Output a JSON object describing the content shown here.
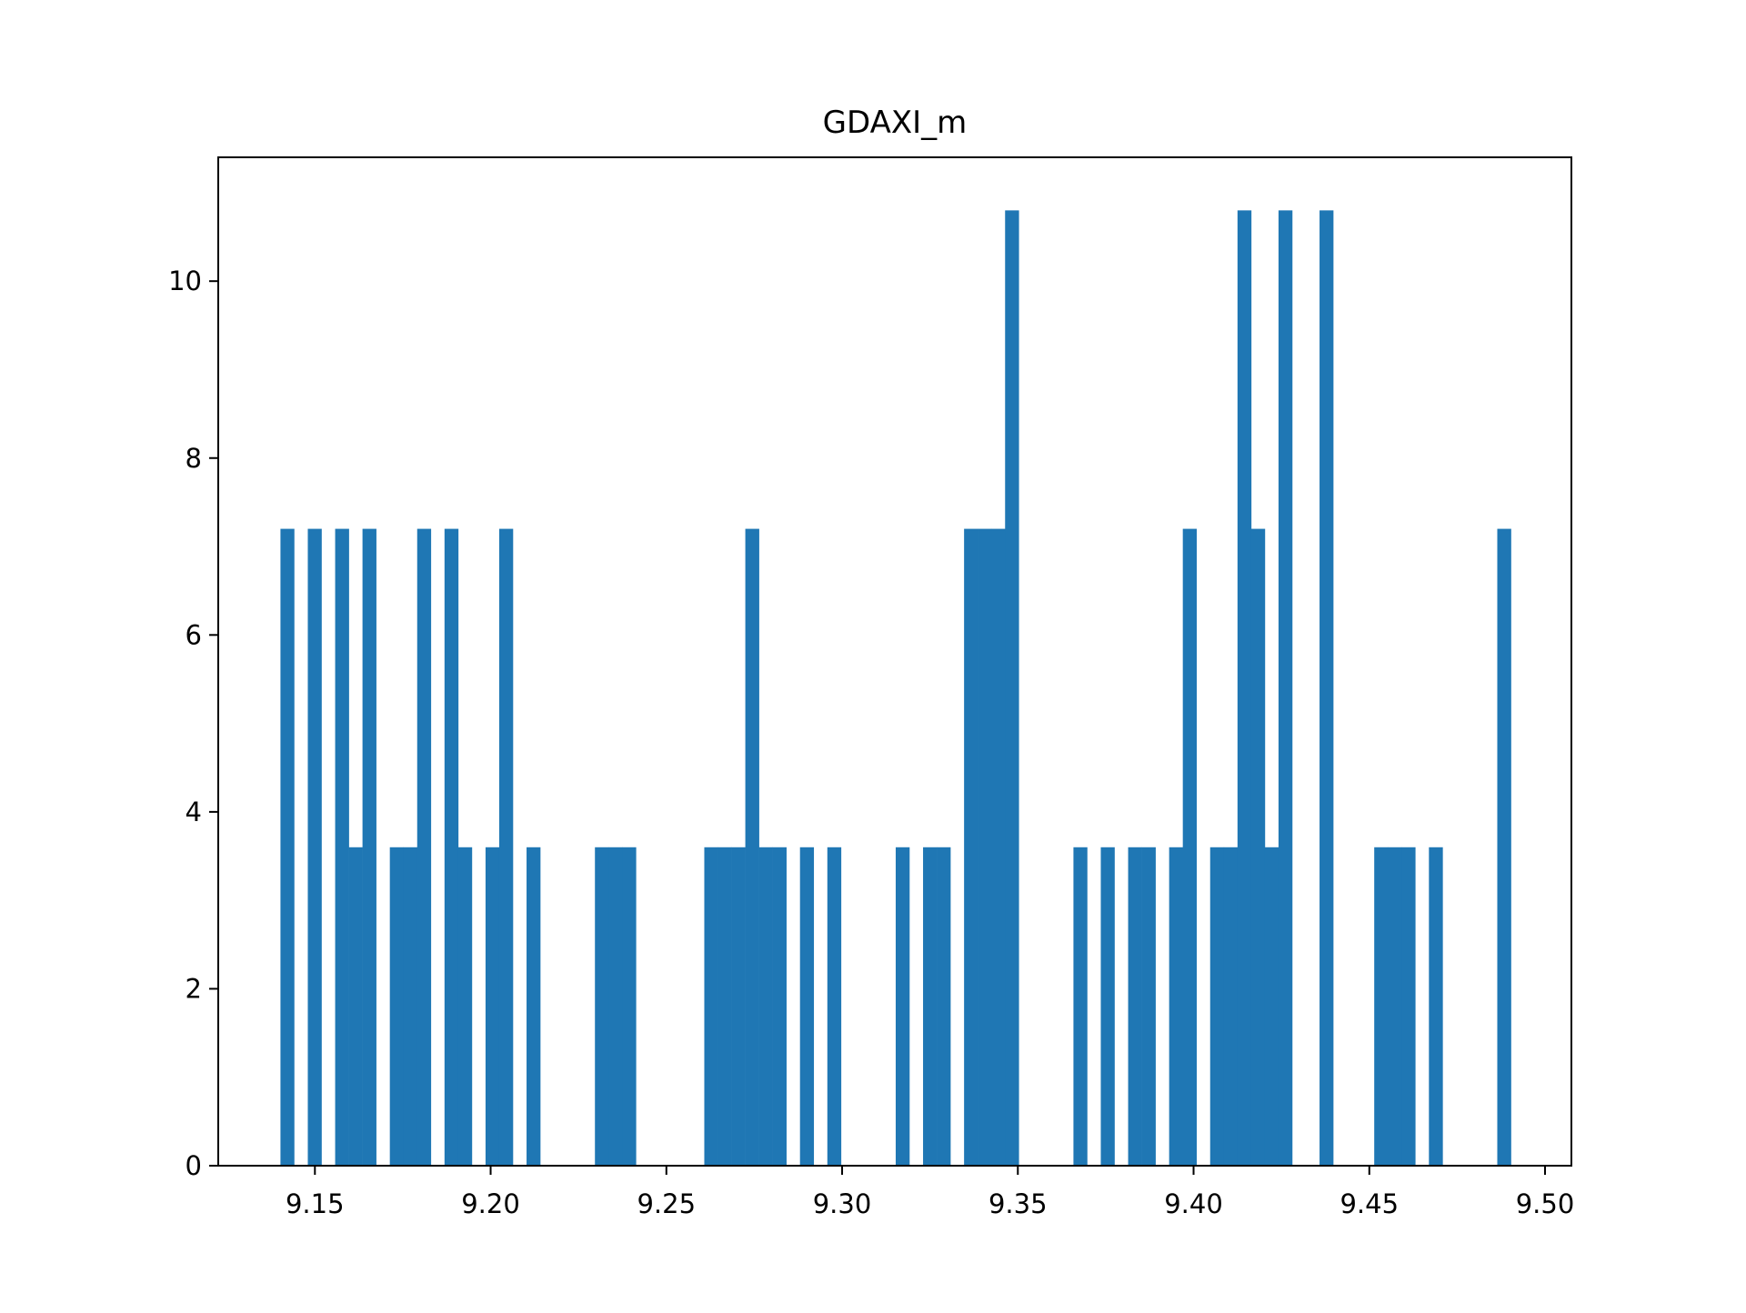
{
  "chart_data": {
    "type": "bar",
    "title": "GDAXI_m",
    "xlabel": "",
    "ylabel": "",
    "xlim": [
      9.1225,
      9.5075
    ],
    "ylim": [
      0,
      11.4
    ],
    "xticks": [
      9.15,
      9.2,
      9.25,
      9.3,
      9.35,
      9.4,
      9.45,
      9.5
    ],
    "xtick_labels": [
      "9.15",
      "9.20",
      "9.25",
      "9.30",
      "9.35",
      "9.40",
      "9.45",
      "9.50"
    ],
    "yticks": [
      0,
      2,
      4,
      6,
      8,
      10
    ],
    "ytick_labels": [
      "0",
      "2",
      "4",
      "6",
      "8",
      "10"
    ],
    "grid": false,
    "legend": "none",
    "bin_start": 9.1402,
    "bin_width": 0.00389,
    "values": [
      7.2,
      0,
      7.2,
      0,
      7.2,
      3.6,
      7.2,
      0,
      3.6,
      3.6,
      7.2,
      0,
      7.2,
      3.6,
      0,
      3.6,
      7.2,
      0,
      3.6,
      0,
      0,
      0,
      0,
      3.6,
      3.6,
      3.6,
      0,
      0,
      0,
      0,
      0,
      3.6,
      3.6,
      3.6,
      7.2,
      3.6,
      3.6,
      0,
      3.6,
      0,
      3.6,
      0,
      0,
      0,
      0,
      3.6,
      0,
      3.6,
      3.6,
      0,
      7.2,
      7.2,
      7.2,
      10.8,
      0,
      0,
      0,
      0,
      3.6,
      0,
      3.6,
      0,
      3.6,
      3.6,
      0,
      3.6,
      7.2,
      0,
      3.6,
      3.6,
      10.8,
      7.2,
      3.6,
      10.8,
      0,
      0,
      10.8,
      0,
      0,
      0,
      3.6,
      3.6,
      3.6,
      0,
      3.6,
      0,
      0,
      0,
      0,
      7.2
    ],
    "colors": {
      "bar": "#1f77b4"
    }
  }
}
